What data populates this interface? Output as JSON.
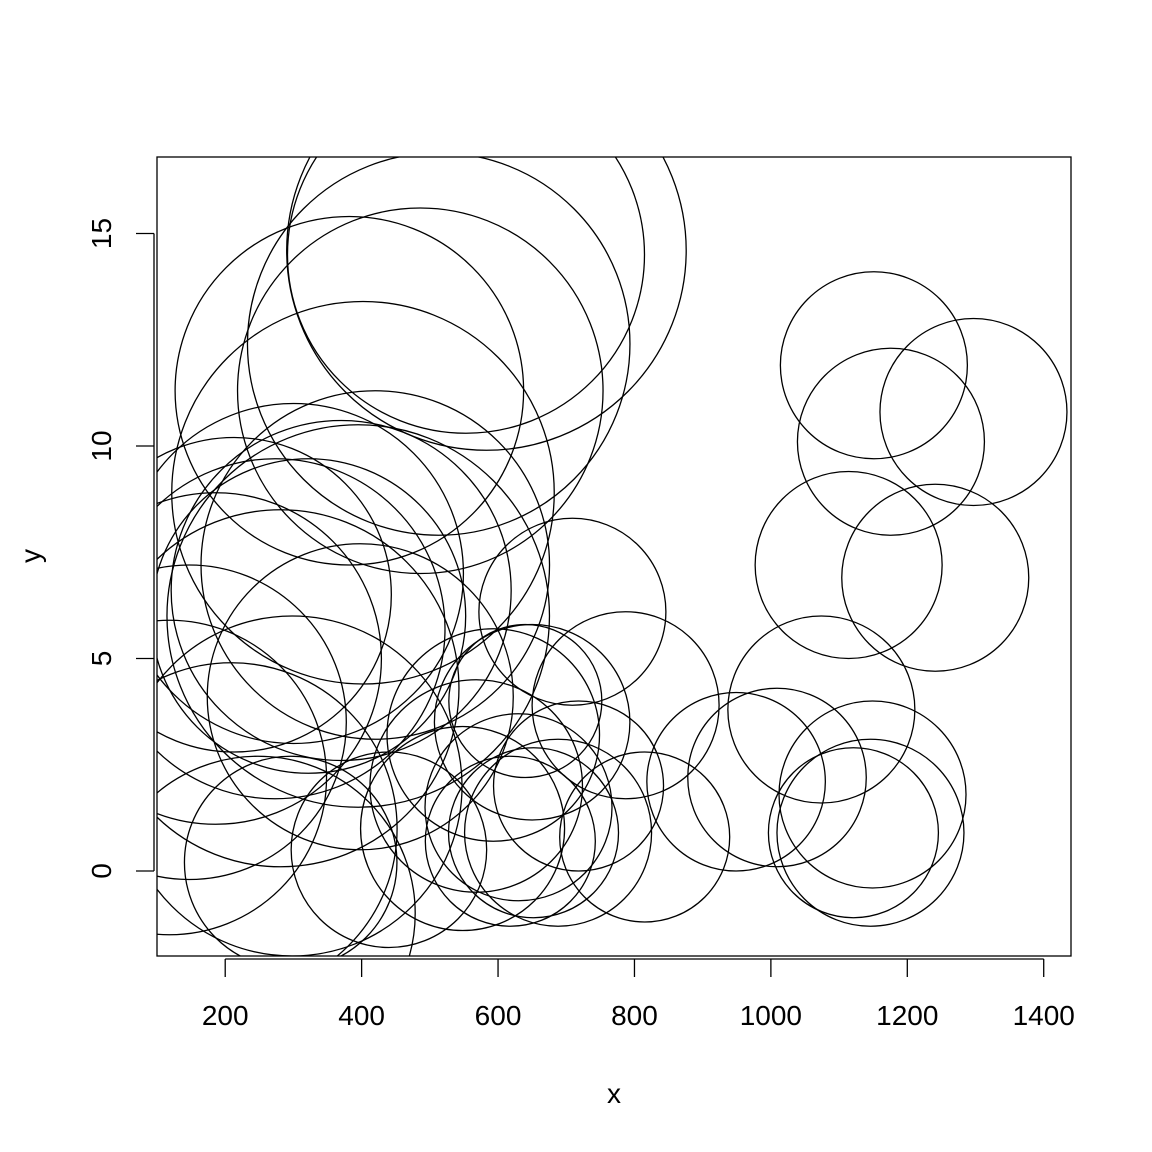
{
  "chart_data": {
    "type": "scatter",
    "title": "",
    "xlabel": "x",
    "ylabel": "y",
    "xlim": [
      100,
      1440
    ],
    "ylim": [
      -2,
      16.8
    ],
    "x_ticks": [
      200,
      400,
      600,
      800,
      1000,
      1200,
      1400
    ],
    "y_ticks": [
      0,
      5,
      10,
      15
    ],
    "x_tick_labels": [
      "200",
      "400",
      "600",
      "800",
      "1000",
      "1200",
      "1400"
    ],
    "y_tick_labels": [
      "0",
      "5",
      "10",
      "15"
    ],
    "grid": false,
    "marker": "open circle",
    "points": [
      {
        "x": 583,
        "y": 14.6,
        "r": 4.7
      },
      {
        "x": 553,
        "y": 14.5,
        "r": 4.2
      },
      {
        "x": 513,
        "y": 12.4,
        "r": 4.5
      },
      {
        "x": 486,
        "y": 11.3,
        "r": 4.3
      },
      {
        "x": 382,
        "y": 11.3,
        "r": 4.1
      },
      {
        "x": 402,
        "y": 8.9,
        "r": 4.5
      },
      {
        "x": 420,
        "y": 7.2,
        "r": 4.1
      },
      {
        "x": 395,
        "y": 6.0,
        "r": 4.5
      },
      {
        "x": 370,
        "y": 6.6,
        "r": 4.0
      },
      {
        "x": 300,
        "y": 7.0,
        "r": 4.0
      },
      {
        "x": 273,
        "y": 5.7,
        "r": 4.0
      },
      {
        "x": 281,
        "y": 4.3,
        "r": 4.2
      },
      {
        "x": 298,
        "y": 2.0,
        "r": 4.0
      },
      {
        "x": 398,
        "y": 4.1,
        "r": 3.6
      },
      {
        "x": 322,
        "y": 6.0,
        "r": 3.7
      },
      {
        "x": 213,
        "y": 6.5,
        "r": 3.7
      },
      {
        "x": 186,
        "y": 5.0,
        "r": 3.9
      },
      {
        "x": 147,
        "y": 3.5,
        "r": 3.7
      },
      {
        "x": 118,
        "y": 2.2,
        "r": 3.7
      },
      {
        "x": 209,
        "y": 1.0,
        "r": 3.9
      },
      {
        "x": 248,
        "y": -1.0,
        "r": 3.7
      },
      {
        "x": 296,
        "y": 0.2,
        "r": 2.5
      },
      {
        "x": 440,
        "y": 0.5,
        "r": 2.3
      },
      {
        "x": 548,
        "y": 1.0,
        "r": 2.4
      },
      {
        "x": 568,
        "y": 2.0,
        "r": 2.5
      },
      {
        "x": 593,
        "y": 3.2,
        "r": 2.5
      },
      {
        "x": 650,
        "y": 3.5,
        "r": 2.3
      },
      {
        "x": 640,
        "y": 4.0,
        "r": 1.8
      },
      {
        "x": 630,
        "y": 1.5,
        "r": 2.2
      },
      {
        "x": 618,
        "y": 0.7,
        "r": 2.0
      },
      {
        "x": 652,
        "y": 0.9,
        "r": 2.0
      },
      {
        "x": 688,
        "y": 0.9,
        "r": 2.2
      },
      {
        "x": 718,
        "y": 2.0,
        "r": 2.0
      },
      {
        "x": 709,
        "y": 6.1,
        "r": 2.2
      },
      {
        "x": 787,
        "y": 3.9,
        "r": 2.2
      },
      {
        "x": 815,
        "y": 0.8,
        "r": 2.0
      },
      {
        "x": 949,
        "y": 2.1,
        "r": 2.1
      },
      {
        "x": 1009,
        "y": 2.2,
        "r": 2.1
      },
      {
        "x": 1074,
        "y": 3.8,
        "r": 2.2
      },
      {
        "x": 1121,
        "y": 0.9,
        "r": 2.0
      },
      {
        "x": 1149,
        "y": 1.8,
        "r": 2.2
      },
      {
        "x": 1146,
        "y": 0.9,
        "r": 2.2
      },
      {
        "x": 1151,
        "y": 11.9,
        "r": 2.2
      },
      {
        "x": 1176,
        "y": 10.1,
        "r": 2.2
      },
      {
        "x": 1297,
        "y": 10.8,
        "r": 2.2
      },
      {
        "x": 1114,
        "y": 7.2,
        "r": 2.2
      },
      {
        "x": 1241,
        "y": 6.9,
        "r": 2.2
      }
    ]
  }
}
